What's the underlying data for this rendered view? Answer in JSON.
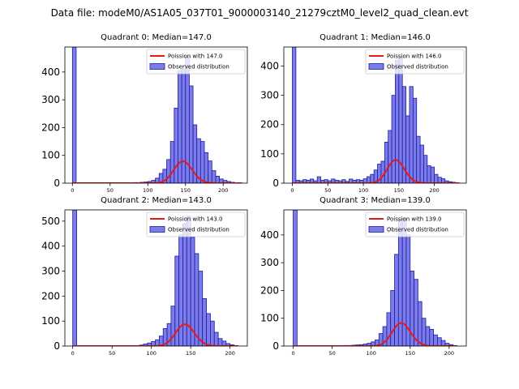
{
  "figure_title": "Data file: modeM0/AS1A05_037T01_9000003140_21279cztM0_level2_quad_clean.evt",
  "colors": {
    "bar_fill": "#7b7bea",
    "bar_edge": "#1c1ca0",
    "fit_line": "#e31a1c",
    "axes": "#000000"
  },
  "chart_data": [
    {
      "type": "bar",
      "title": "Quadrant 0: Median=147.0",
      "legend": {
        "fit_label": "Poission with 147.0",
        "hist_label": "Observed distribution",
        "placement": "upper-right"
      },
      "xlim": [
        -10,
        232
      ],
      "ylim": [
        0,
        490
      ],
      "xticks": [
        0,
        50,
        100,
        150,
        200
      ],
      "yticks": [
        0,
        100,
        200,
        300,
        400
      ],
      "bin_width": 5,
      "bins": [
        [
          0,
          490
        ],
        [
          70,
          1
        ],
        [
          75,
          1
        ],
        [
          80,
          2
        ],
        [
          85,
          2
        ],
        [
          90,
          3
        ],
        [
          95,
          4
        ],
        [
          100,
          6
        ],
        [
          105,
          10
        ],
        [
          110,
          18
        ],
        [
          115,
          35
        ],
        [
          120,
          50
        ],
        [
          125,
          85
        ],
        [
          130,
          150
        ],
        [
          135,
          270
        ],
        [
          140,
          405
        ],
        [
          145,
          410
        ],
        [
          150,
          455
        ],
        [
          155,
          350
        ],
        [
          160,
          210
        ],
        [
          165,
          160
        ],
        [
          170,
          150
        ],
        [
          175,
          110
        ],
        [
          180,
          80
        ],
        [
          185,
          45
        ],
        [
          190,
          25
        ],
        [
          195,
          15
        ],
        [
          200,
          10
        ],
        [
          205,
          6
        ],
        [
          210,
          3
        ],
        [
          215,
          1
        ]
      ],
      "poisson_mean": 147,
      "poisson_scale": 2400,
      "fit_x_range": [
        0,
        225
      ]
    },
    {
      "type": "bar",
      "title": "Quadrant 1: Median=146.0",
      "legend": {
        "fit_label": "Poission with 146.0",
        "hist_label": "Observed distribution",
        "placement": "upper-right"
      },
      "xlim": [
        -12,
        245
      ],
      "ylim": [
        0,
        465
      ],
      "xticks": [
        0,
        50,
        100,
        150,
        200
      ],
      "yticks": [
        0,
        100,
        200,
        300,
        400
      ],
      "bin_width": 5,
      "bins": [
        [
          0,
          465
        ],
        [
          5,
          10
        ],
        [
          10,
          8
        ],
        [
          15,
          12
        ],
        [
          20,
          10
        ],
        [
          25,
          14
        ],
        [
          30,
          8
        ],
        [
          35,
          22
        ],
        [
          40,
          10
        ],
        [
          45,
          12
        ],
        [
          50,
          8
        ],
        [
          55,
          14
        ],
        [
          60,
          10
        ],
        [
          65,
          8
        ],
        [
          70,
          12
        ],
        [
          75,
          6
        ],
        [
          80,
          14
        ],
        [
          85,
          10
        ],
        [
          90,
          12
        ],
        [
          95,
          10
        ],
        [
          100,
          15
        ],
        [
          105,
          22
        ],
        [
          110,
          30
        ],
        [
          115,
          45
        ],
        [
          120,
          65
        ],
        [
          125,
          75
        ],
        [
          130,
          140
        ],
        [
          135,
          180
        ],
        [
          140,
          300
        ],
        [
          145,
          420
        ],
        [
          150,
          430
        ],
        [
          155,
          330
        ],
        [
          160,
          230
        ],
        [
          165,
          330
        ],
        [
          170,
          290
        ],
        [
          175,
          160
        ],
        [
          180,
          130
        ],
        [
          185,
          95
        ],
        [
          190,
          60
        ],
        [
          195,
          55
        ],
        [
          200,
          30
        ],
        [
          205,
          20
        ],
        [
          210,
          15
        ],
        [
          215,
          8
        ],
        [
          220,
          5
        ],
        [
          225,
          3
        ],
        [
          230,
          1
        ]
      ],
      "poisson_mean": 146,
      "poisson_scale": 2400,
      "fit_x_range": [
        0,
        235
      ]
    },
    {
      "type": "bar",
      "title": "Quadrant 2: Median=143.0",
      "legend": {
        "fit_label": "Poission with 143.0",
        "hist_label": "Observed distribution",
        "placement": "upper-right"
      },
      "xlim": [
        -10,
        222
      ],
      "ylim": [
        0,
        545
      ],
      "xticks": [
        0,
        50,
        100,
        150,
        200
      ],
      "yticks": [
        0,
        100,
        200,
        300,
        400,
        500
      ],
      "bin_width": 5,
      "bins": [
        [
          0,
          545
        ],
        [
          60,
          1
        ],
        [
          65,
          1
        ],
        [
          70,
          2
        ],
        [
          75,
          2
        ],
        [
          80,
          2
        ],
        [
          85,
          4
        ],
        [
          90,
          8
        ],
        [
          95,
          12
        ],
        [
          100,
          18
        ],
        [
          105,
          25
        ],
        [
          110,
          40
        ],
        [
          115,
          70
        ],
        [
          120,
          90
        ],
        [
          125,
          160
        ],
        [
          130,
          360
        ],
        [
          135,
          445
        ],
        [
          140,
          490
        ],
        [
          145,
          520
        ],
        [
          150,
          435
        ],
        [
          155,
          370
        ],
        [
          160,
          300
        ],
        [
          165,
          190
        ],
        [
          170,
          130
        ],
        [
          175,
          100
        ],
        [
          180,
          55
        ],
        [
          185,
          30
        ],
        [
          190,
          20
        ],
        [
          195,
          10
        ],
        [
          200,
          5
        ],
        [
          205,
          2
        ]
      ],
      "poisson_mean": 143,
      "poisson_scale": 2600,
      "fit_x_range": [
        0,
        210
      ]
    },
    {
      "type": "bar",
      "title": "Quadrant 3: Median=139.0",
      "legend": {
        "fit_label": "Poission with 139.0",
        "hist_label": "Observed distribution",
        "placement": "upper-right"
      },
      "xlim": [
        -12,
        222
      ],
      "ylim": [
        0,
        490
      ],
      "xticks": [
        0,
        50,
        100,
        150,
        200
      ],
      "yticks": [
        0,
        100,
        200,
        300,
        400
      ],
      "bin_width": 5,
      "bins": [
        [
          0,
          490
        ],
        [
          55,
          1
        ],
        [
          60,
          1
        ],
        [
          65,
          2
        ],
        [
          70,
          2
        ],
        [
          75,
          3
        ],
        [
          80,
          4
        ],
        [
          85,
          5
        ],
        [
          90,
          7
        ],
        [
          95,
          10
        ],
        [
          100,
          15
        ],
        [
          105,
          22
        ],
        [
          110,
          45
        ],
        [
          115,
          70
        ],
        [
          120,
          120
        ],
        [
          125,
          200
        ],
        [
          130,
          330
        ],
        [
          135,
          455
        ],
        [
          140,
          460
        ],
        [
          145,
          400
        ],
        [
          150,
          270
        ],
        [
          155,
          240
        ],
        [
          160,
          160
        ],
        [
          165,
          100
        ],
        [
          170,
          70
        ],
        [
          175,
          60
        ],
        [
          180,
          40
        ],
        [
          185,
          30
        ],
        [
          190,
          20
        ],
        [
          195,
          10
        ],
        [
          200,
          5
        ],
        [
          205,
          2
        ]
      ],
      "poisson_mean": 139,
      "poisson_scale": 2450,
      "fit_x_range": [
        0,
        210
      ]
    }
  ]
}
